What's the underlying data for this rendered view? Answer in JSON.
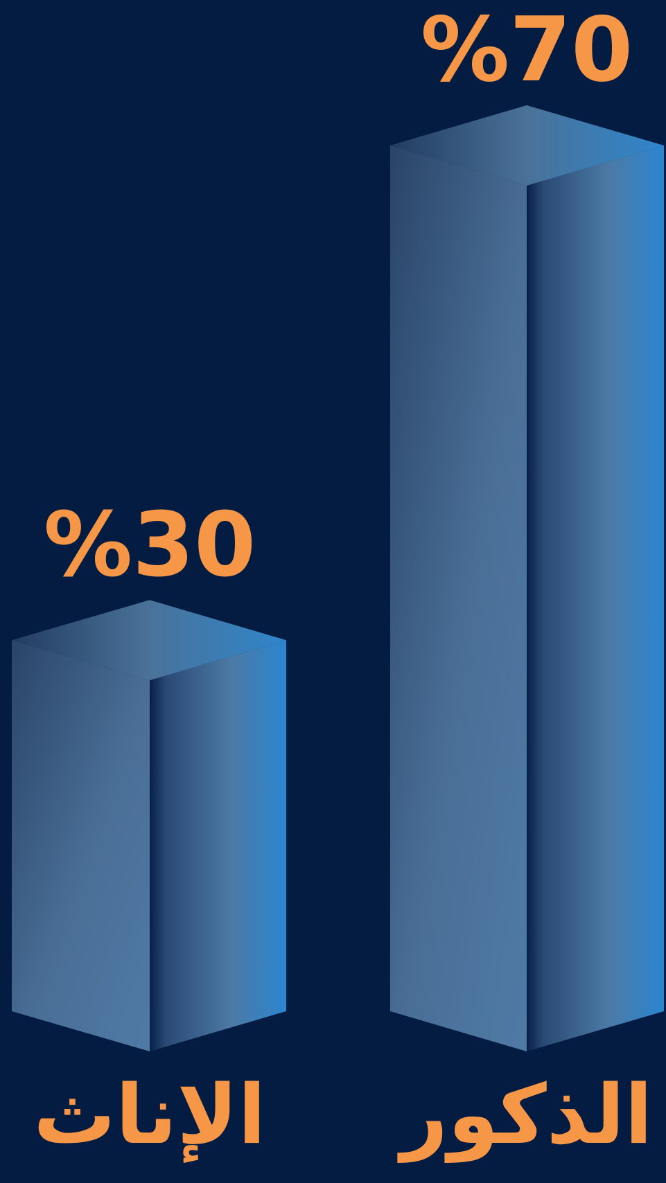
{
  "chart_data": {
    "type": "bar",
    "style": "3d-prism",
    "categories": [
      "الإناث",
      "الذكور"
    ],
    "values": [
      30,
      70
    ],
    "value_labels": [
      "%30",
      "%70"
    ],
    "unit": "%",
    "ylim": [
      0,
      70
    ],
    "grid": false,
    "legend": "none"
  },
  "colors": {
    "background": "#041c42",
    "label": "#f69647",
    "bar_face_light": "#4d7aa6",
    "bar_face_dark": "#2a4468",
    "bar_side_accent": "#2c86d0"
  }
}
